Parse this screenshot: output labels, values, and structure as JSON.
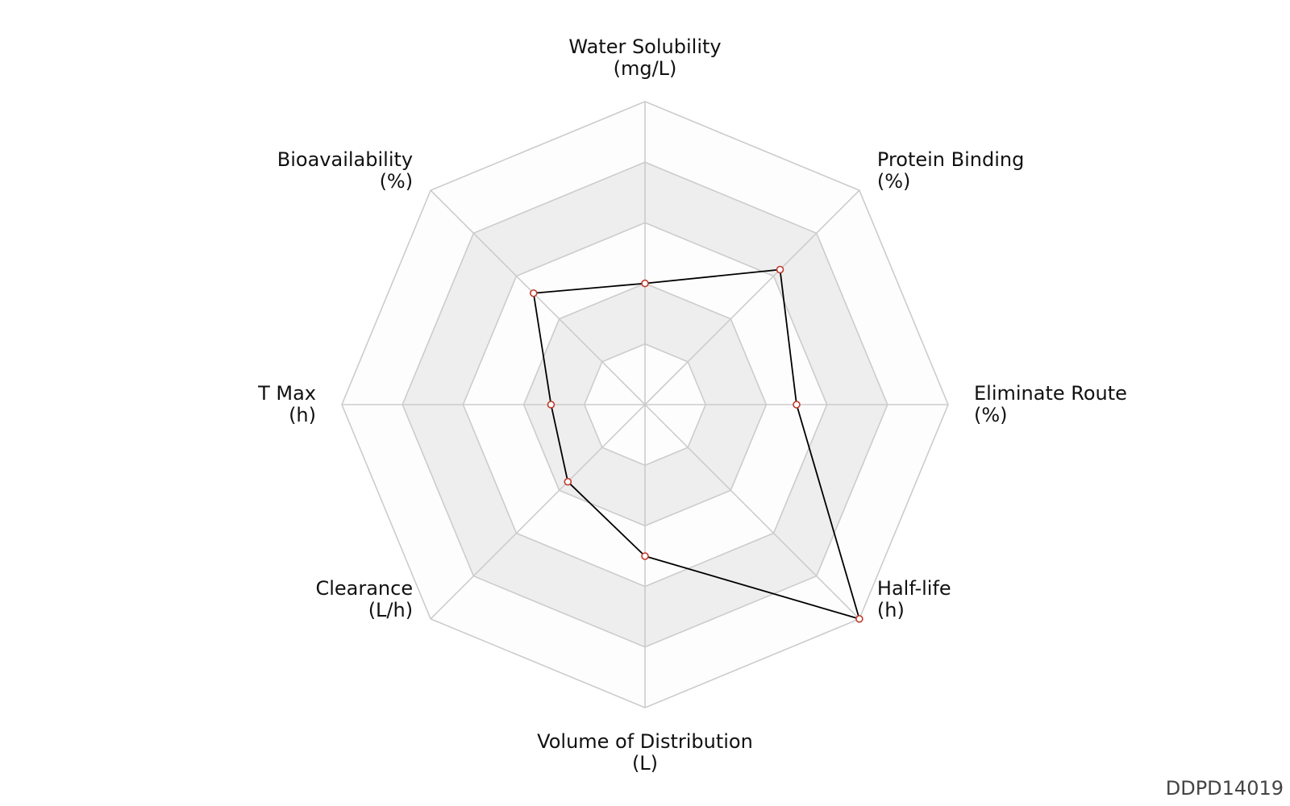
{
  "chart_data": {
    "type": "radar",
    "axes": [
      {
        "name": "Water Solubility",
        "unit": "(mg/L)",
        "value": 0.4
      },
      {
        "name": "Protein Binding",
        "unit": "(%)",
        "value": 0.63
      },
      {
        "name": "Eliminate Route",
        "unit": "(%)",
        "value": 0.5
      },
      {
        "name": "Half-life",
        "unit": "(h)",
        "value": 1.0
      },
      {
        "name": "Volume of Distribution",
        "unit": "(L)",
        "value": 0.5
      },
      {
        "name": "Clearance",
        "unit": "(L/h)",
        "value": 0.36
      },
      {
        "name": "T Max",
        "unit": "(h)",
        "value": 0.31
      },
      {
        "name": "Bioavailability",
        "unit": "(%)",
        "value": 0.52
      }
    ],
    "rings": 5,
    "range": [
      0,
      1
    ],
    "grid": true,
    "colors": {
      "band_light": "#fdfdfd",
      "band_dark": "#eeeeee",
      "grid_line": "#cccccc",
      "series_line": "#000000",
      "marker_edge": "#c0392b",
      "marker_fill": "#ffffff"
    }
  },
  "watermark": "DDPD14019"
}
